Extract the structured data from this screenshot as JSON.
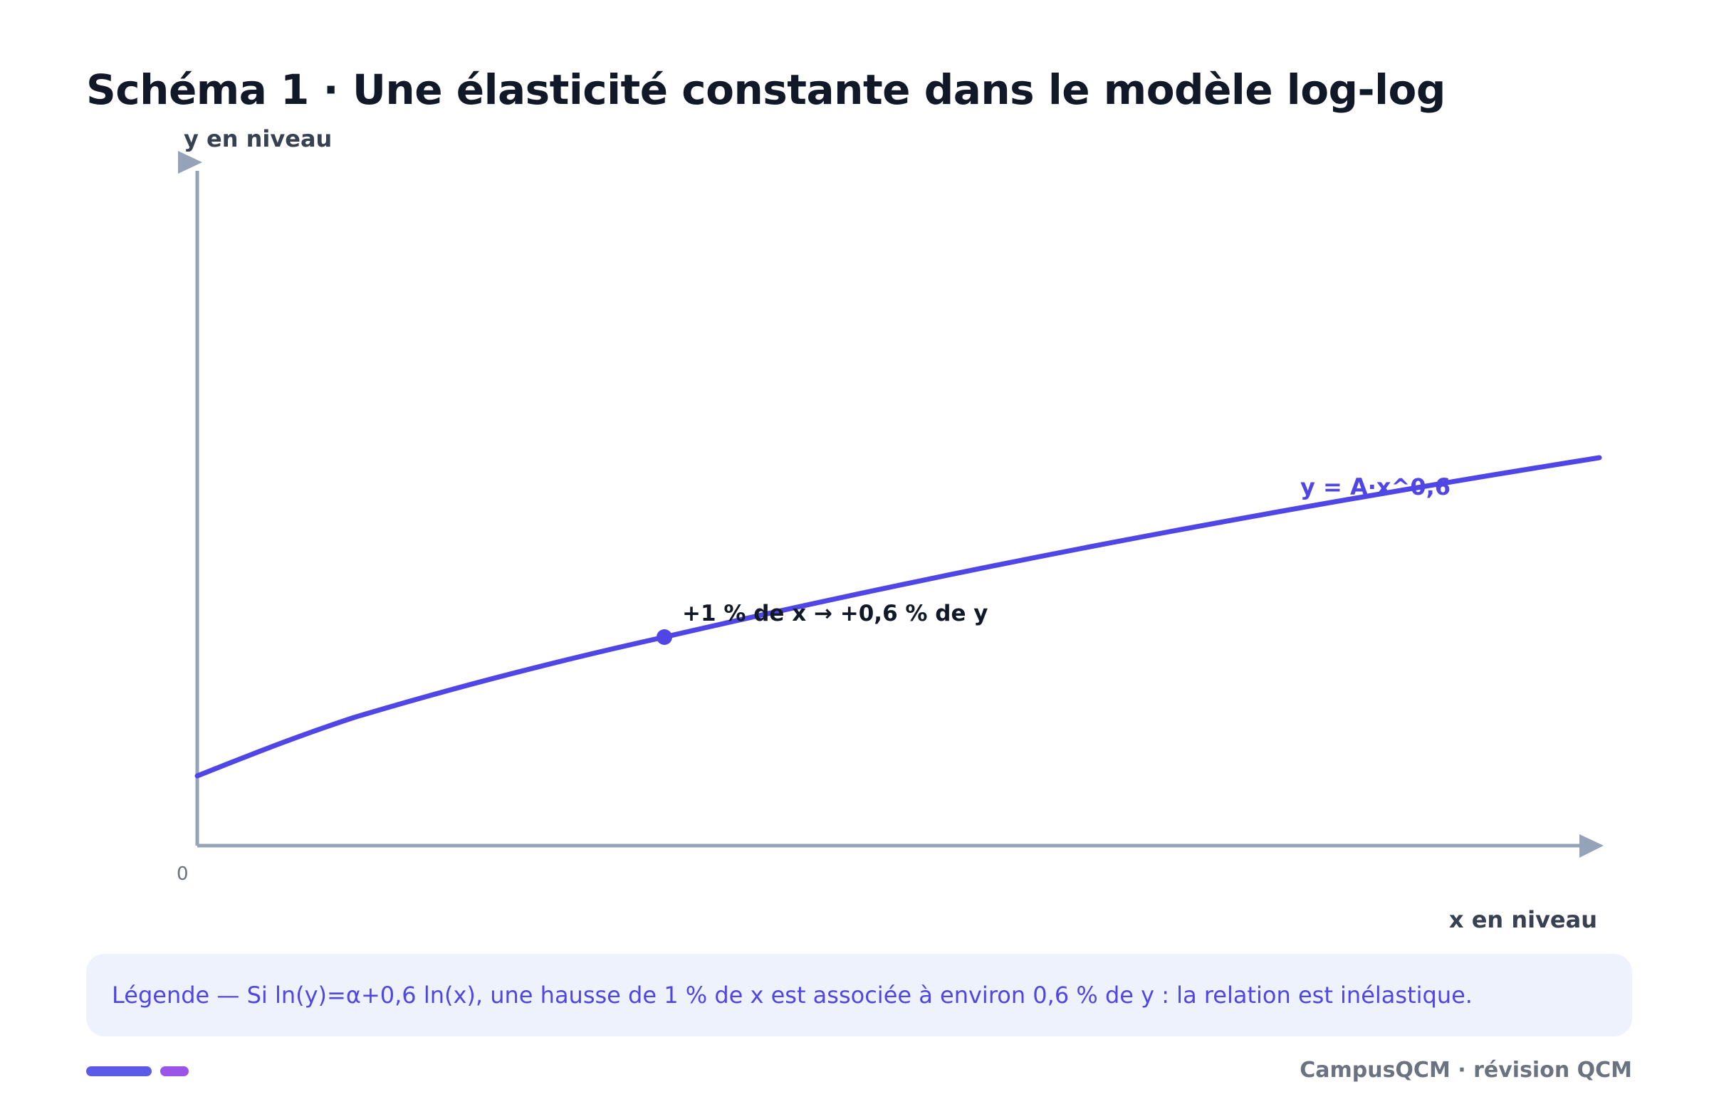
{
  "title": "Schéma 1 · Une élasticité constante dans le modèle log-log",
  "axes": {
    "y_label": "y en niveau",
    "x_label": "x en niveau",
    "origin_label": "0"
  },
  "curve": {
    "label": "y = A·x^0,6",
    "exponent": 0.6,
    "color": "#4f46e5"
  },
  "point": {
    "annotation": "+1 % de x → +0,6 % de y"
  },
  "legend": {
    "text": "Légende — Si ln(y)=α+0,6 ln(x), une hausse de 1 % de x est associée à environ 0,6 % de y : la relation est inélastique."
  },
  "footer": {
    "brand": "CampusQCM · révision QCM"
  },
  "colors": {
    "axis": "#94a3b8",
    "accent": "#4f46e5",
    "title": "#111827"
  }
}
